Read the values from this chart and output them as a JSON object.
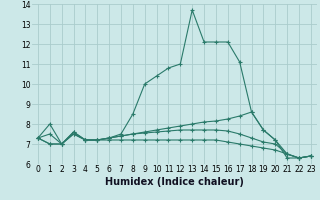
{
  "title": "",
  "xlabel": "Humidex (Indice chaleur)",
  "bg_color": "#cce8e8",
  "grid_color": "#aacccc",
  "line_color": "#2a7a6a",
  "xlim": [
    -0.5,
    23.5
  ],
  "ylim": [
    6,
    14
  ],
  "xticks": [
    0,
    1,
    2,
    3,
    4,
    5,
    6,
    7,
    8,
    9,
    10,
    11,
    12,
    13,
    14,
    15,
    16,
    17,
    18,
    19,
    20,
    21,
    22,
    23
  ],
  "yticks": [
    6,
    7,
    8,
    9,
    10,
    11,
    12,
    13,
    14
  ],
  "line1_x": [
    0,
    1,
    2,
    3,
    4,
    5,
    6,
    7,
    8,
    9,
    10,
    11,
    12,
    13,
    14,
    15,
    16,
    17,
    18,
    19,
    20,
    21,
    22,
    23
  ],
  "line1_y": [
    7.3,
    8.0,
    7.0,
    7.6,
    7.2,
    7.2,
    7.3,
    7.5,
    8.5,
    10.0,
    10.4,
    10.8,
    11.0,
    13.7,
    12.1,
    12.1,
    12.1,
    11.1,
    8.6,
    7.7,
    7.2,
    6.3,
    6.3,
    6.4
  ],
  "line2_x": [
    0,
    1,
    2,
    3,
    4,
    5,
    6,
    7,
    8,
    9,
    10,
    11,
    12,
    13,
    14,
    15,
    16,
    17,
    18,
    19,
    20,
    21,
    22,
    23
  ],
  "line2_y": [
    7.3,
    7.5,
    7.0,
    7.6,
    7.2,
    7.2,
    7.3,
    7.4,
    7.5,
    7.6,
    7.7,
    7.8,
    7.9,
    8.0,
    8.1,
    8.15,
    8.25,
    8.4,
    8.6,
    7.7,
    7.2,
    6.5,
    6.3,
    6.4
  ],
  "line3_x": [
    0,
    1,
    2,
    3,
    4,
    5,
    6,
    7,
    8,
    9,
    10,
    11,
    12,
    13,
    14,
    15,
    16,
    17,
    18,
    19,
    20,
    21,
    22,
    23
  ],
  "line3_y": [
    7.3,
    7.0,
    7.0,
    7.5,
    7.2,
    7.2,
    7.2,
    7.2,
    7.2,
    7.2,
    7.2,
    7.2,
    7.2,
    7.2,
    7.2,
    7.2,
    7.1,
    7.0,
    6.9,
    6.8,
    6.7,
    6.5,
    6.3,
    6.4
  ],
  "line4_x": [
    0,
    1,
    2,
    3,
    4,
    5,
    6,
    7,
    8,
    9,
    10,
    11,
    12,
    13,
    14,
    15,
    16,
    17,
    18,
    19,
    20,
    21,
    22,
    23
  ],
  "line4_y": [
    7.3,
    7.0,
    7.0,
    7.5,
    7.2,
    7.2,
    7.3,
    7.4,
    7.5,
    7.55,
    7.6,
    7.65,
    7.7,
    7.7,
    7.7,
    7.7,
    7.65,
    7.5,
    7.3,
    7.1,
    7.0,
    6.5,
    6.3,
    6.4
  ],
  "xlabel_fontsize": 7,
  "tick_fontsize": 5.5
}
